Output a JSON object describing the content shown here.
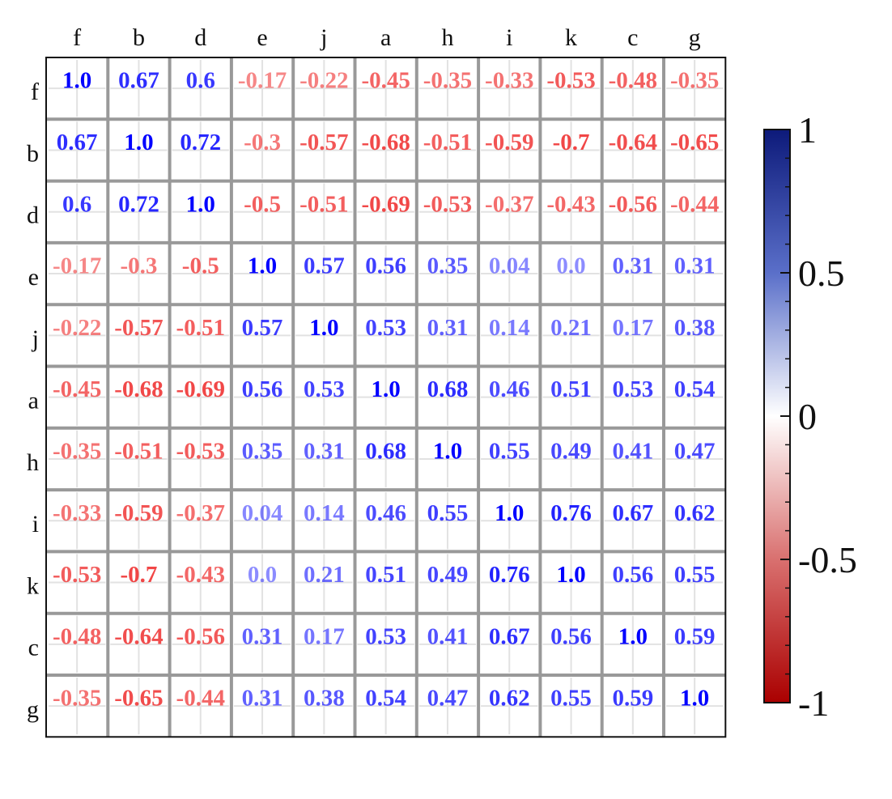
{
  "chart_data": {
    "type": "heatmap",
    "title": "",
    "x_labels": [
      "f",
      "b",
      "d",
      "e",
      "j",
      "a",
      "h",
      "i",
      "k",
      "c",
      "g"
    ],
    "y_labels": [
      "f",
      "b",
      "d",
      "e",
      "j",
      "a",
      "h",
      "i",
      "k",
      "c",
      "g"
    ],
    "values": [
      [
        1.0,
        0.67,
        0.6,
        -0.17,
        -0.22,
        -0.45,
        -0.35,
        -0.33,
        -0.53,
        -0.48,
        -0.35
      ],
      [
        0.67,
        1.0,
        0.72,
        -0.3,
        -0.57,
        -0.68,
        -0.51,
        -0.59,
        -0.7,
        -0.64,
        -0.65
      ],
      [
        0.6,
        0.72,
        1.0,
        -0.5,
        -0.51,
        -0.69,
        -0.53,
        -0.37,
        -0.43,
        -0.56,
        -0.44
      ],
      [
        -0.17,
        -0.3,
        -0.5,
        1.0,
        0.57,
        0.56,
        0.35,
        0.04,
        0.0,
        0.31,
        0.31
      ],
      [
        -0.22,
        -0.57,
        -0.51,
        0.57,
        1.0,
        0.53,
        0.31,
        0.14,
        0.21,
        0.17,
        0.38
      ],
      [
        -0.45,
        -0.68,
        -0.69,
        0.56,
        0.53,
        1.0,
        0.68,
        0.46,
        0.51,
        0.53,
        0.54
      ],
      [
        -0.35,
        -0.51,
        -0.53,
        0.35,
        0.31,
        0.68,
        1.0,
        0.55,
        0.49,
        0.41,
        0.47
      ],
      [
        -0.33,
        -0.59,
        -0.37,
        0.04,
        0.14,
        0.46,
        0.55,
        1.0,
        0.76,
        0.67,
        0.62
      ],
      [
        -0.53,
        -0.7,
        -0.43,
        0.0,
        0.21,
        0.51,
        0.49,
        0.76,
        1.0,
        0.56,
        0.55
      ],
      [
        -0.48,
        -0.64,
        -0.56,
        0.31,
        0.17,
        0.53,
        0.41,
        0.67,
        0.56,
        1.0,
        0.59
      ],
      [
        -0.35,
        -0.65,
        -0.44,
        0.31,
        0.38,
        0.54,
        0.47,
        0.62,
        0.55,
        0.59,
        1.0
      ]
    ],
    "labels": [
      [
        "1.0",
        "0.67",
        "0.6",
        "-0.17",
        "-0.22",
        "-0.45",
        "-0.35",
        "-0.33",
        "-0.53",
        "-0.48",
        "-0.35"
      ],
      [
        "0.67",
        "1.0",
        "0.72",
        "-0.3",
        "-0.57",
        "-0.68",
        "-0.51",
        "-0.59",
        "-0.7",
        "-0.64",
        "-0.65"
      ],
      [
        "0.6",
        "0.72",
        "1.0",
        "-0.5",
        "-0.51",
        "-0.69",
        "-0.53",
        "-0.37",
        "-0.43",
        "-0.56",
        "-0.44"
      ],
      [
        "-0.17",
        "-0.3",
        "-0.5",
        "1.0",
        "0.57",
        "0.56",
        "0.35",
        "0.04",
        "0.0",
        "0.31",
        "0.31"
      ],
      [
        "-0.22",
        "-0.57",
        "-0.51",
        "0.57",
        "1.0",
        "0.53",
        "0.31",
        "0.14",
        "0.21",
        "0.17",
        "0.38"
      ],
      [
        "-0.45",
        "-0.68",
        "-0.69",
        "0.56",
        "0.53",
        "1.0",
        "0.68",
        "0.46",
        "0.51",
        "0.53",
        "0.54"
      ],
      [
        "-0.35",
        "-0.51",
        "-0.53",
        "0.35",
        "0.31",
        "0.68",
        "1.0",
        "0.55",
        "0.49",
        "0.41",
        "0.47"
      ],
      [
        "-0.33",
        "-0.59",
        "-0.37",
        "0.04",
        "0.14",
        "0.46",
        "0.55",
        "1.0",
        "0.76",
        "0.67",
        "0.62"
      ],
      [
        "-0.53",
        "-0.7",
        "-0.43",
        "0.0",
        "0.21",
        "0.51",
        "0.49",
        "0.76",
        "1.0",
        "0.56",
        "0.55"
      ],
      [
        "-0.48",
        "-0.64",
        "-0.56",
        "0.31",
        "0.17",
        "0.53",
        "0.41",
        "0.67",
        "0.56",
        "1.0",
        "0.59"
      ],
      [
        "-0.35",
        "-0.65",
        "-0.44",
        "0.31",
        "0.38",
        "0.54",
        "0.47",
        "0.62",
        "0.55",
        "0.59",
        "1.0"
      ]
    ],
    "colorbar": {
      "range": [
        -1,
        1
      ],
      "ticks": [
        1,
        0.5,
        0,
        -0.5,
        -1
      ],
      "tick_labels": [
        "1",
        "0.5",
        "0",
        "-0.5",
        "-1"
      ]
    },
    "colors": {
      "positive": "#0000ff",
      "negative": "#ee2222",
      "max": "#0d1a7a",
      "mid": "#ffffff",
      "min": "#aa0000",
      "grid": "#999999"
    },
    "cell_background": "white",
    "grid": true
  }
}
